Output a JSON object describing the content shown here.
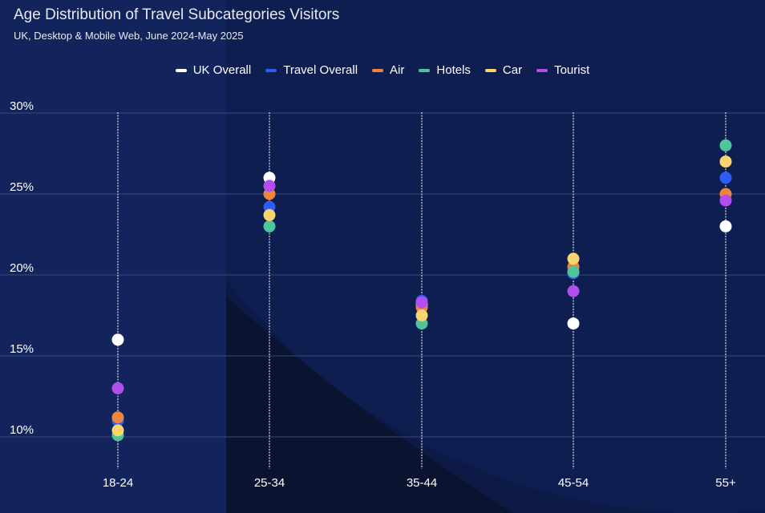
{
  "chart_data": {
    "type": "scatter",
    "title": "Age Distribution of Travel Subcategories Visitors",
    "subtitle": "UK, Desktop & Mobile Web, June 2024-May 2025",
    "categories": [
      "18-24",
      "25-34",
      "35-44",
      "45-54",
      "55+"
    ],
    "y_ticks": [
      "10%",
      "15%",
      "20%",
      "25%",
      "30%"
    ],
    "ylim": [
      8.5,
      30
    ],
    "grid": true,
    "legend_position": "top",
    "series": [
      {
        "name": "UK Overall",
        "color": "#ffffff",
        "values": [
          16.0,
          26.0,
          18.2,
          17.0,
          23.0
        ]
      },
      {
        "name": "Travel Overall",
        "color": "#2f5cf5",
        "values": [
          11.0,
          24.2,
          18.4,
          20.1,
          26.0
        ]
      },
      {
        "name": "Air",
        "color": "#ef843c",
        "values": [
          11.2,
          25.0,
          18.0,
          20.5,
          25.0
        ]
      },
      {
        "name": "Hotels",
        "color": "#4ec59a",
        "values": [
          10.1,
          23.0,
          17.0,
          20.2,
          28.0
        ]
      },
      {
        "name": "Car",
        "color": "#fad46e",
        "values": [
          10.4,
          23.7,
          17.5,
          21.0,
          27.0
        ]
      },
      {
        "name": "Tourist",
        "color": "#b24ef0",
        "values": [
          13.0,
          25.5,
          18.3,
          19.0,
          24.6
        ]
      }
    ]
  }
}
